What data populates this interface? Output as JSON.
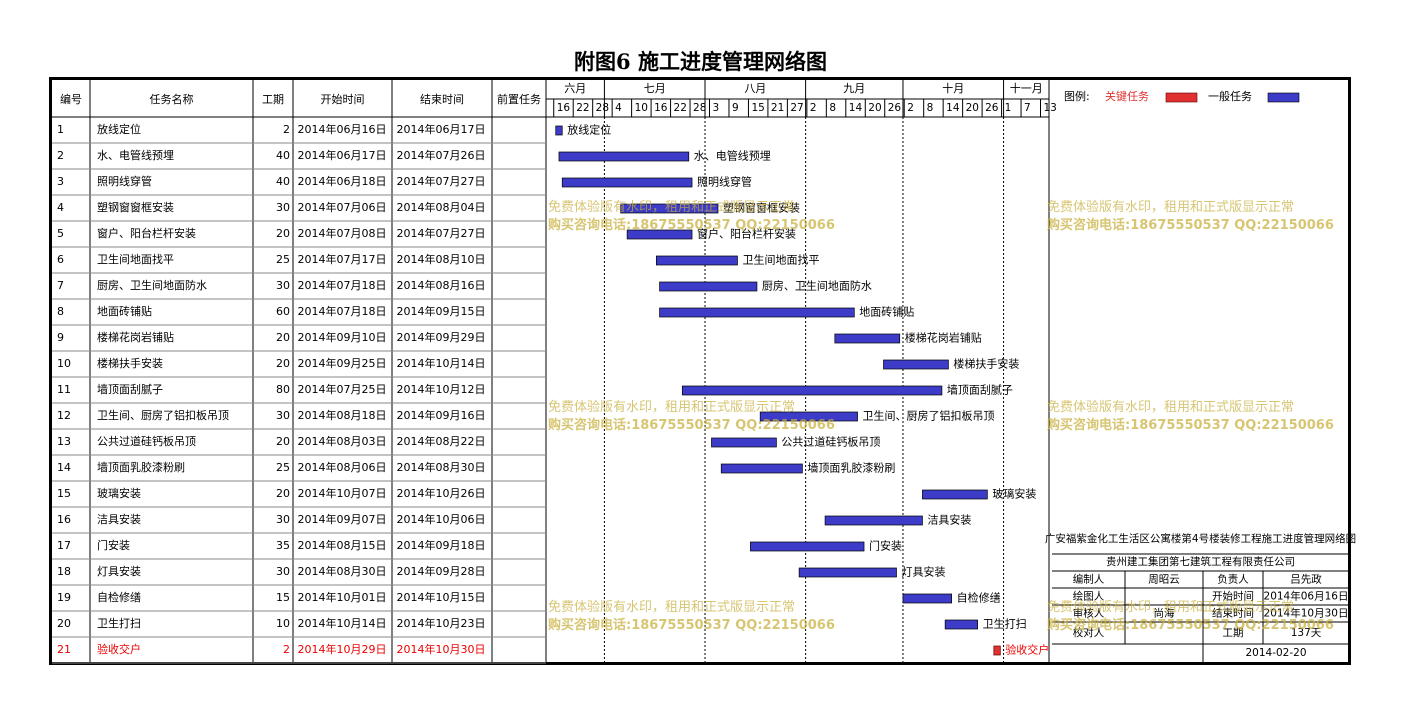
{
  "title": "附图6  施工进度管理网络图",
  "columns": [
    "编号",
    "任务名称",
    "工期",
    "开始时间",
    "结束时间",
    "前置任务"
  ],
  "months": [
    "六月",
    "七月",
    "八月",
    "九月",
    "十月",
    "十一月"
  ],
  "day_ticks": [
    "16",
    "22",
    "28",
    "4",
    "10",
    "16",
    "22",
    "28",
    "3",
    "9",
    "15",
    "21",
    "27",
    "2",
    "8",
    "14",
    "20",
    "26",
    "2",
    "8",
    "14",
    "20",
    "26",
    "1",
    "7",
    "13"
  ],
  "legend": {
    "label": "图例:",
    "critical": "关键任务",
    "normal": "一般任务",
    "critical_color": "#e03030",
    "normal_color": "#3c3cc8"
  },
  "watermark": {
    "line1": "免费体验版有水印，租用和正式版显示正常",
    "line2": "购买咨询电话:18675550537 QQ:22150066"
  },
  "info": {
    "project": "广安福紫金化工生活区公寓楼第4号楼装修工程施工进度管理网络图",
    "company": "贵州建工集团第七建筑工程有限责任公司",
    "rows": [
      [
        "编制人",
        "周昭云",
        "负责人",
        "吕先政"
      ],
      [
        "绘图人",
        "",
        "开始时间",
        "2014年06月16日"
      ],
      [
        "审核人",
        "尚海",
        "结束时间",
        "2014年10月30日"
      ],
      [
        "校对人",
        "",
        "工期",
        "137天"
      ],
      [
        "",
        "",
        "",
        "2014-02-20"
      ]
    ]
  },
  "chart_data": {
    "type": "gantt",
    "x_range": [
      "2014-06-13",
      "2014-11-15"
    ],
    "tasks": [
      {
        "id": "1",
        "name": "放线定位",
        "duration": 2,
        "start": "2014年06月16日",
        "end": "2014年06月17日",
        "start_date": "2014-06-16",
        "end_date": "2014-06-17",
        "critical": false
      },
      {
        "id": "2",
        "name": "水、电管线预埋",
        "duration": 40,
        "start": "2014年06月17日",
        "end": "2014年07月26日",
        "start_date": "2014-06-17",
        "end_date": "2014-07-26",
        "critical": false
      },
      {
        "id": "3",
        "name": "照明线穿管",
        "duration": 40,
        "start": "2014年06月18日",
        "end": "2014年07月27日",
        "start_date": "2014-06-18",
        "end_date": "2014-07-27",
        "critical": false
      },
      {
        "id": "4",
        "name": "塑钢窗窗框安装",
        "duration": 30,
        "start": "2014年07月06日",
        "end": "2014年08月04日",
        "start_date": "2014-07-06",
        "end_date": "2014-08-04",
        "critical": false
      },
      {
        "id": "5",
        "name": "窗户、阳台栏杆安装",
        "duration": 20,
        "start": "2014年07月08日",
        "end": "2014年07月27日",
        "start_date": "2014-07-08",
        "end_date": "2014-07-27",
        "critical": false
      },
      {
        "id": "6",
        "name": "卫生间地面找平",
        "duration": 25,
        "start": "2014年07月17日",
        "end": "2014年08月10日",
        "start_date": "2014-07-17",
        "end_date": "2014-08-10",
        "critical": false
      },
      {
        "id": "7",
        "name": "厨房、卫生间地面防水",
        "duration": 30,
        "start": "2014年07月18日",
        "end": "2014年08月16日",
        "start_date": "2014-07-18",
        "end_date": "2014-08-16",
        "critical": false
      },
      {
        "id": "8",
        "name": "地面砖铺贴",
        "duration": 60,
        "start": "2014年07月18日",
        "end": "2014年09月15日",
        "start_date": "2014-07-18",
        "end_date": "2014-09-15",
        "critical": false
      },
      {
        "id": "9",
        "name": "楼梯花岗岩铺贴",
        "duration": 20,
        "start": "2014年09月10日",
        "end": "2014年09月29日",
        "start_date": "2014-09-10",
        "end_date": "2014-09-29",
        "critical": false
      },
      {
        "id": "10",
        "name": "楼梯扶手安装",
        "duration": 20,
        "start": "2014年09月25日",
        "end": "2014年10月14日",
        "start_date": "2014-09-25",
        "end_date": "2014-10-14",
        "critical": false
      },
      {
        "id": "11",
        "name": "墙顶面刮腻子",
        "duration": 80,
        "start": "2014年07月25日",
        "end": "2014年10月12日",
        "start_date": "2014-07-25",
        "end_date": "2014-10-12",
        "critical": false
      },
      {
        "id": "12",
        "name": "卫生间、厨房了铝扣板吊顶",
        "duration": 30,
        "start": "2014年08月18日",
        "end": "2014年09月16日",
        "start_date": "2014-08-18",
        "end_date": "2014-09-16",
        "critical": false
      },
      {
        "id": "13",
        "name": "公共过道硅钙板吊顶",
        "duration": 20,
        "start": "2014年08月03日",
        "end": "2014年08月22日",
        "start_date": "2014-08-03",
        "end_date": "2014-08-22",
        "critical": false
      },
      {
        "id": "14",
        "name": "墙顶面乳胶漆粉刷",
        "duration": 25,
        "start": "2014年08月06日",
        "end": "2014年08月30日",
        "start_date": "2014-08-06",
        "end_date": "2014-08-30",
        "critical": false
      },
      {
        "id": "15",
        "name": "玻璃安装",
        "duration": 20,
        "start": "2014年10月07日",
        "end": "2014年10月26日",
        "start_date": "2014-10-07",
        "end_date": "2014-10-26",
        "critical": false
      },
      {
        "id": "16",
        "name": "洁具安装",
        "duration": 30,
        "start": "2014年09月07日",
        "end": "2014年10月06日",
        "start_date": "2014-09-07",
        "end_date": "2014-10-06",
        "critical": false
      },
      {
        "id": "17",
        "name": "门安装",
        "duration": 35,
        "start": "2014年08月15日",
        "end": "2014年09月18日",
        "start_date": "2014-08-15",
        "end_date": "2014-09-18",
        "critical": false
      },
      {
        "id": "18",
        "name": "灯具安装",
        "duration": 30,
        "start": "2014年08月30日",
        "end": "2014年09月28日",
        "start_date": "2014-08-30",
        "end_date": "2014-09-28",
        "critical": false
      },
      {
        "id": "19",
        "name": "自检修缮",
        "duration": 15,
        "start": "2014年10月01日",
        "end": "2014年10月15日",
        "start_date": "2014-10-01",
        "end_date": "2014-10-15",
        "critical": false
      },
      {
        "id": "20",
        "name": "卫生打扫",
        "duration": 10,
        "start": "2014年10月14日",
        "end": "2014年10月23日",
        "start_date": "2014-10-14",
        "end_date": "2014-10-23",
        "critical": false
      },
      {
        "id": "21",
        "name": "验收交户",
        "duration": 2,
        "start": "2014年10月29日",
        "end": "2014年10月30日",
        "start_date": "2014-10-29",
        "end_date": "2014-10-30",
        "critical": true
      }
    ]
  }
}
